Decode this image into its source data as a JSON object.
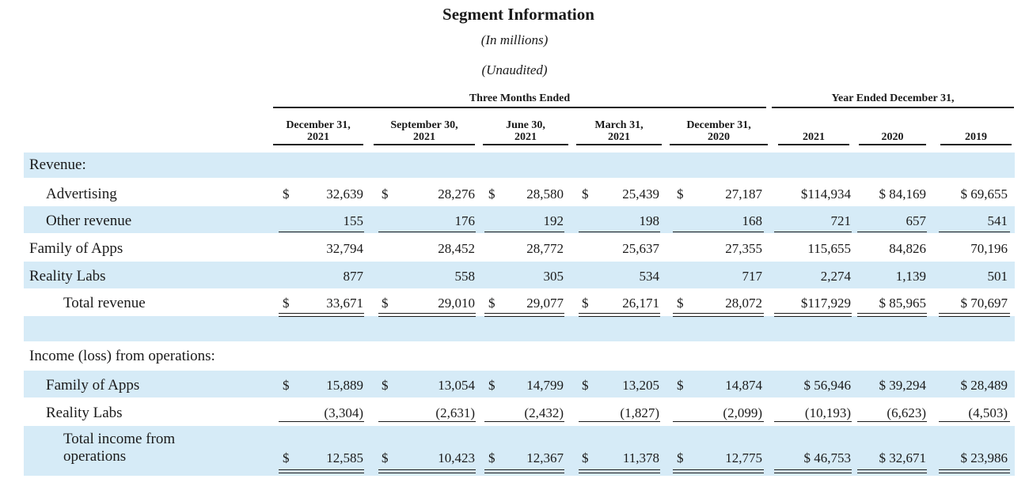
{
  "title": "Segment Information",
  "subtitle_units": "(In millions)",
  "subtitle_audit": "(Unaudited)",
  "groups": {
    "three_months": "Three Months Ended",
    "year_ended": "Year Ended December 31,"
  },
  "columns": [
    {
      "line1": "December 31,",
      "line2": "2021"
    },
    {
      "line1": "September 30,",
      "line2": "2021"
    },
    {
      "line1": "June 30,",
      "line2": "2021"
    },
    {
      "line1": "March 31,",
      "line2": "2021"
    },
    {
      "line1": "December 31,",
      "line2": "2020"
    },
    {
      "line1": "",
      "line2": "2021"
    },
    {
      "line1": "",
      "line2": "2020"
    },
    {
      "line1": "",
      "line2": "2019"
    }
  ],
  "currency_symbol": "$",
  "sections": {
    "revenue": "Revenue:",
    "income": "Income (loss) from operations:"
  },
  "rows": {
    "advertising": {
      "label": "Advertising",
      "values": [
        "32,639",
        "28,276",
        "28,580",
        "25,439",
        "27,187",
        "$114,934",
        "$ 84,169",
        "$ 69,655"
      ]
    },
    "other_revenue": {
      "label": "Other revenue",
      "values": [
        "155",
        "176",
        "192",
        "198",
        "168",
        "721",
        "657",
        "541"
      ]
    },
    "family_apps_rev": {
      "label": "Family of Apps",
      "values": [
        "32,794",
        "28,452",
        "28,772",
        "25,637",
        "27,355",
        "115,655",
        "84,826",
        "70,196"
      ]
    },
    "reality_labs_rev": {
      "label": "Reality Labs",
      "values": [
        "877",
        "558",
        "305",
        "534",
        "717",
        "2,274",
        "1,139",
        "501"
      ]
    },
    "total_revenue": {
      "label": "Total revenue",
      "values": [
        "33,671",
        "29,010",
        "29,077",
        "26,171",
        "28,072",
        "$117,929",
        "$ 85,965",
        "$ 70,697"
      ]
    },
    "family_apps_inc": {
      "label": "Family of Apps",
      "values": [
        "15,889",
        "13,054",
        "14,799",
        "13,205",
        "14,874",
        "$ 56,946",
        "$ 39,294",
        "$ 28,489"
      ]
    },
    "reality_labs_inc": {
      "label": "Reality Labs",
      "values": [
        "(3,304)",
        "(2,631)",
        "(2,432)",
        "(1,827)",
        "(2,099)",
        "(10,193)",
        "(6,623)",
        "(4,503)"
      ]
    },
    "total_income": {
      "label_line1": "Total income from",
      "label_line2": "operations",
      "values": [
        "12,585",
        "10,423",
        "12,367",
        "11,378",
        "12,775",
        "$ 46,753",
        "$ 32,671",
        "$ 23,986"
      ]
    }
  }
}
